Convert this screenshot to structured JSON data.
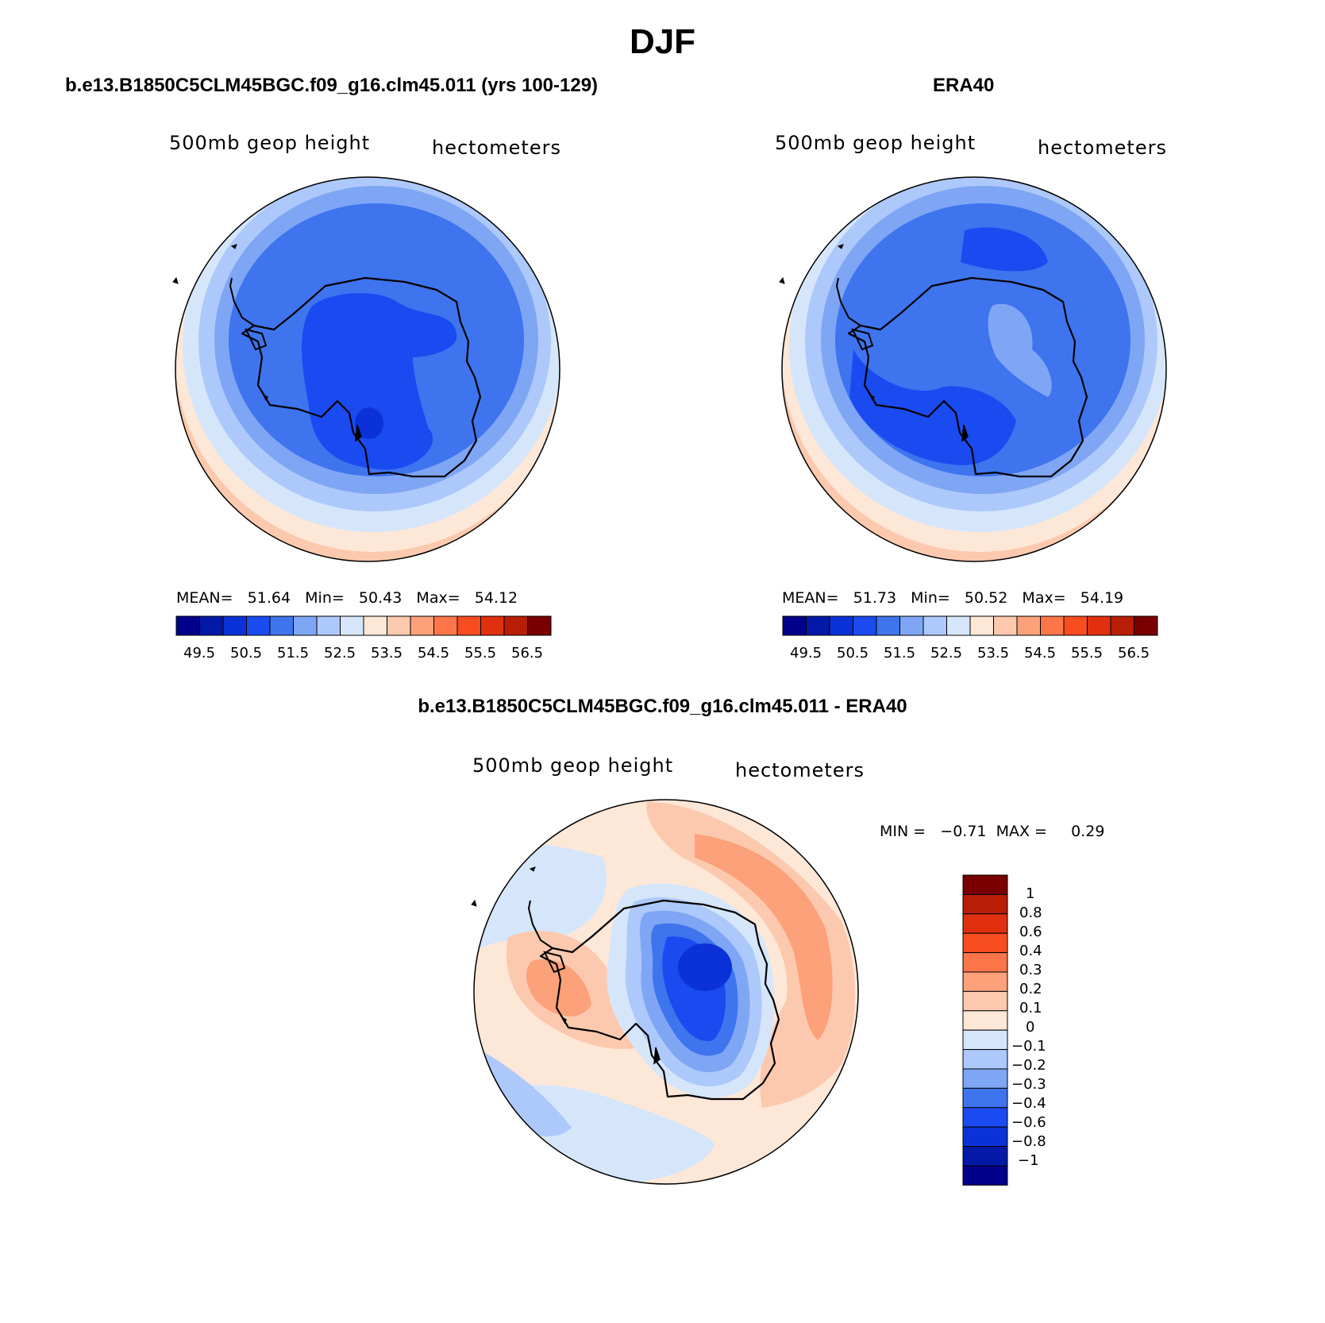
{
  "figure": {
    "title": "DJF",
    "subtitle_left": "500mb geop height",
    "subtitle_right": "hectometers"
  },
  "panels": [
    {
      "title": "b.e13.B1850C5CLM45BGC.f09_g16.clm45.011 (yrs 100-129)",
      "stats": "MEAN=   51.64   Min=   50.43   Max=   54.12",
      "colorbar_labels": [
        "49.5",
        "50.5",
        "51.5",
        "52.5",
        "53.5",
        "54.5",
        "55.5",
        "56.5"
      ]
    },
    {
      "title": "ERA40",
      "stats": "MEAN=   51.73   Min=   50.52   Max=   54.19",
      "colorbar_labels": [
        "49.5",
        "50.5",
        "51.5",
        "52.5",
        "53.5",
        "54.5",
        "55.5",
        "56.5"
      ]
    },
    {
      "title": "b.e13.B1850C5CLM45BGC.f09_g16.clm45.011 - ERA40",
      "stats": "MIN =   −0.71  MAX =     0.29",
      "colorbar_labels": [
        "1",
        "0.8",
        "0.6",
        "0.4",
        "0.3",
        "0.2",
        "0.1",
        "0",
        "−0.1",
        "−0.2",
        "−0.3",
        "−0.4",
        "−0.6",
        "−0.8",
        "−1"
      ]
    }
  ],
  "colors": {
    "abs_scale": [
      "#00008b",
      "#0519a8",
      "#0b32d8",
      "#1a4bf0",
      "#3e74ee",
      "#7fa6f5",
      "#adc8fa",
      "#d5e6fb",
      "#fde7d7",
      "#fcc9ae",
      "#fda17a",
      "#fd764a",
      "#f84d20",
      "#e0300f",
      "#b81e05",
      "#7a0000"
    ],
    "diff_scale_top_to_bottom": [
      "#7a0000",
      "#b81e05",
      "#e0300f",
      "#f84d20",
      "#fd764a",
      "#fda17a",
      "#fcc9ae",
      "#fde7d7",
      "#d5e6fb",
      "#adc8fa",
      "#7fa6f5",
      "#3e74ee",
      "#1a4bf0",
      "#0b32d8",
      "#0519a8",
      "#00008b"
    ]
  }
}
